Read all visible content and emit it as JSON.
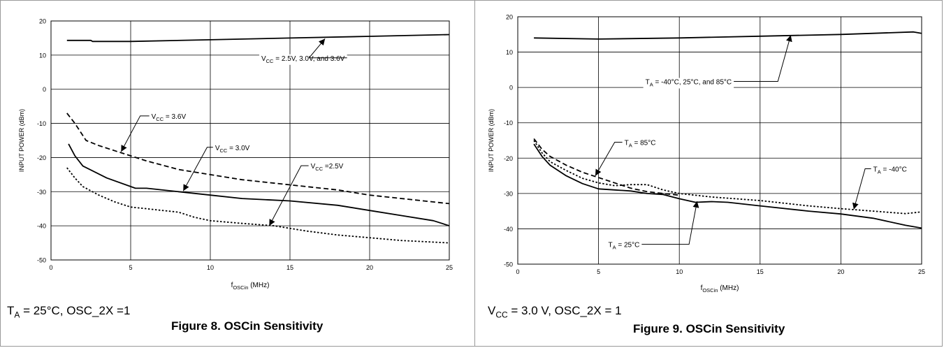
{
  "colors": {
    "line": "#000000",
    "grid": "#000000",
    "frame": "#999999"
  },
  "chart_data": [
    {
      "type": "line",
      "caption": "Figure 8. OSCin Sensitivity",
      "condition": {
        "main": "T",
        "sub": "A",
        "rest": " = 25°C, OSC_2X =1"
      },
      "ylabel": "INPUT POWER (dBm)",
      "xlabel": {
        "main": "f",
        "sub": "OSCin",
        "rest": " (MHz)"
      },
      "xlim": [
        0,
        25
      ],
      "ylim": [
        -50,
        20
      ],
      "xticks": [
        0,
        5,
        10,
        15,
        20,
        25
      ],
      "yticks": [
        -50,
        -40,
        -30,
        -20,
        -10,
        0,
        10,
        20
      ],
      "grid": true,
      "series": [
        {
          "style": "solid",
          "points": [
            [
              1,
              14.3
            ],
            [
              2.5,
              14.3
            ],
            [
              2.6,
              14
            ],
            [
              5,
              14
            ],
            [
              10,
              14.5
            ],
            [
              15,
              15
            ],
            [
              20,
              15.5
            ],
            [
              25,
              16
            ]
          ]
        },
        {
          "style": "dashed",
          "points": [
            [
              1,
              -7
            ],
            [
              1.5,
              -10
            ],
            [
              2.2,
              -15
            ],
            [
              3,
              -16.5
            ],
            [
              4,
              -18
            ],
            [
              5,
              -19.5
            ],
            [
              6,
              -21
            ],
            [
              8,
              -23.5
            ],
            [
              10,
              -25
            ],
            [
              12,
              -26.5
            ],
            [
              15,
              -28
            ],
            [
              18,
              -29.5
            ],
            [
              20,
              -31
            ],
            [
              22,
              -32
            ],
            [
              25,
              -33.5
            ]
          ]
        },
        {
          "style": "solid",
          "points": [
            [
              1.1,
              -16
            ],
            [
              1.5,
              -19.5
            ],
            [
              2,
              -22.5
            ],
            [
              3.5,
              -26
            ],
            [
              5.3,
              -29
            ],
            [
              6,
              -29
            ],
            [
              8,
              -30
            ],
            [
              10,
              -31
            ],
            [
              12,
              -32
            ],
            [
              15,
              -32.7
            ],
            [
              18,
              -34
            ],
            [
              20,
              -35.5
            ],
            [
              22,
              -37
            ],
            [
              24,
              -38.5
            ],
            [
              25,
              -40
            ]
          ]
        },
        {
          "style": "dotted",
          "points": [
            [
              1,
              -23
            ],
            [
              1.5,
              -26
            ],
            [
              2,
              -28.5
            ],
            [
              3,
              -31
            ],
            [
              4,
              -33
            ],
            [
              5,
              -34.5
            ],
            [
              6,
              -35
            ],
            [
              7,
              -35.5
            ],
            [
              8,
              -36
            ],
            [
              9,
              -37.5
            ],
            [
              10,
              -38.5
            ],
            [
              12,
              -39.3
            ],
            [
              14,
              -40
            ],
            [
              16,
              -41.5
            ],
            [
              18,
              -42.7
            ],
            [
              20,
              -43.5
            ],
            [
              22,
              -44.3
            ],
            [
              25,
              -45
            ]
          ]
        }
      ],
      "annotations": [
        {
          "text": {
            "main": "V",
            "sub": "CC",
            "rest": " = 2.5V, 3.0V, and 3.6V"
          },
          "at": [
            13.2,
            9.2
          ],
          "target": [
            17.2,
            14.8
          ],
          "elbow": [
            16.2,
            9.2
          ]
        },
        {
          "text": {
            "main": "V",
            "sub": "CC",
            "rest": " = 3.6V"
          },
          "at": [
            6.3,
            -7.8
          ],
          "target": [
            4.4,
            -18.3
          ],
          "elbow": [
            5.6,
            -7.8
          ]
        },
        {
          "text": {
            "main": "V",
            "sub": "CC",
            "rest": " = 3.0V"
          },
          "at": [
            10.3,
            -17
          ],
          "target": [
            8.3,
            -29.8
          ],
          "elbow": [
            9.8,
            -17
          ]
        },
        {
          "text": {
            "main": "V",
            "sub": "CC",
            "rest": " =2.5V"
          },
          "at": [
            16.3,
            -22.4
          ],
          "target": [
            13.7,
            -40
          ],
          "elbow": [
            15.7,
            -22.4
          ]
        }
      ]
    },
    {
      "type": "line",
      "caption": "Figure 9. OSCin Sensitivity",
      "condition": {
        "main": "V",
        "sub": "CC",
        "rest": " = 3.0 V, OSC_2X = 1"
      },
      "ylabel": "INPUT POWER (dBm)",
      "xlabel": {
        "main": "f",
        "sub": "OSCin",
        "rest": " (MHz)"
      },
      "xlim": [
        0,
        25
      ],
      "ylim": [
        -50,
        20
      ],
      "xticks": [
        0,
        5,
        10,
        15,
        20,
        25
      ],
      "yticks": [
        -50,
        -40,
        -30,
        -20,
        -10,
        0,
        10,
        20
      ],
      "grid": true,
      "series": [
        {
          "style": "solid",
          "points": [
            [
              1,
              14
            ],
            [
              5,
              13.7
            ],
            [
              10,
              14
            ],
            [
              15,
              14.5
            ],
            [
              20,
              15
            ],
            [
              24.5,
              15.7
            ],
            [
              25,
              15.3
            ]
          ]
        },
        {
          "style": "dashed",
          "points": [
            [
              1,
              -14.5
            ],
            [
              1.5,
              -17.5
            ],
            [
              2,
              -19.5
            ],
            [
              3,
              -22
            ],
            [
              4,
              -24
            ],
            [
              5,
              -25.5
            ],
            [
              6,
              -27
            ],
            [
              7,
              -28.5
            ],
            [
              8,
              -29.5
            ],
            [
              9,
              -30
            ],
            [
              10,
              -30.5
            ]
          ]
        },
        {
          "style": "dotted",
          "points": [
            [
              1,
              -15
            ],
            [
              1.5,
              -18.5
            ],
            [
              2,
              -21
            ],
            [
              3,
              -23.5
            ],
            [
              4,
              -25.7
            ],
            [
              5,
              -27
            ],
            [
              6,
              -27.8
            ],
            [
              7,
              -27.5
            ],
            [
              8,
              -27.5
            ],
            [
              9,
              -29
            ],
            [
              10,
              -30
            ],
            [
              12,
              -31
            ],
            [
              15,
              -32
            ],
            [
              18,
              -33.5
            ],
            [
              20,
              -34.3
            ],
            [
              22,
              -35
            ],
            [
              24,
              -35.7
            ],
            [
              25,
              -35.2
            ]
          ]
        },
        {
          "style": "solid",
          "points": [
            [
              1,
              -16
            ],
            [
              1.5,
              -19.5
            ],
            [
              2,
              -22
            ],
            [
              3,
              -25
            ],
            [
              4,
              -27.2
            ],
            [
              5,
              -28.7
            ],
            [
              6,
              -29
            ],
            [
              7,
              -29.3
            ],
            [
              8,
              -30
            ],
            [
              9,
              -30.3
            ],
            [
              10,
              -31.5
            ],
            [
              11,
              -32.5
            ],
            [
              12,
              -32.3
            ],
            [
              13,
              -32.5
            ],
            [
              15,
              -33.5
            ],
            [
              18,
              -35
            ],
            [
              20,
              -35.8
            ],
            [
              22,
              -37
            ],
            [
              24,
              -39
            ],
            [
              25,
              -39.8
            ]
          ]
        }
      ],
      "annotations": [
        {
          "text": {
            "main": "T",
            "sub": "A",
            "rest": " = -40°C,  25°C, and 85°C"
          },
          "at": [
            7.9,
            1.7
          ],
          "target": [
            16.9,
            14.8
          ],
          "elbow": [
            16.1,
            1.7
          ]
        },
        {
          "text": {
            "main": "T",
            "sub": "A",
            "rest": " = 85°C"
          },
          "at": [
            6.6,
            -15.5
          ],
          "target": [
            4.8,
            -25
          ],
          "elbow": [
            6,
            -15.5
          ]
        },
        {
          "text": {
            "main": "T",
            "sub": "A",
            "rest": " = -40°C"
          },
          "at": [
            22,
            -23
          ],
          "target": [
            20.8,
            -34.5
          ],
          "elbow": [
            21.5,
            -23
          ]
        },
        {
          "text": {
            "main": "T",
            "sub": "A",
            "rest": " = 25°C"
          },
          "at": [
            5.6,
            -44.4
          ],
          "target": [
            11.1,
            -32.2
          ],
          "elbow": [
            10.6,
            -44.4
          ]
        }
      ]
    }
  ]
}
